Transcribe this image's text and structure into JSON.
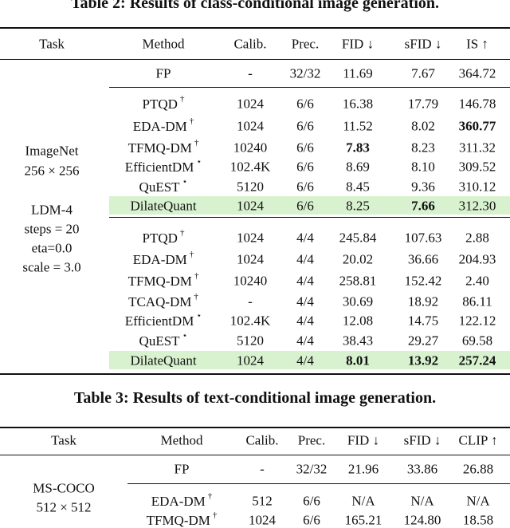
{
  "table2": {
    "caption": "Table 2: Results of class-conditional image generation.",
    "header": [
      "Task",
      "Method",
      "Calib.",
      "Prec.",
      "FID ↓",
      "sFID ↓",
      "IS ↑"
    ],
    "task": {
      "dataset": [
        "ImageNet",
        "256 × 256"
      ],
      "settings": [
        "LDM-4",
        "steps = 20",
        "eta=0.0",
        "scale = 3.0"
      ]
    },
    "groups": [
      [
        {
          "method": "FP",
          "cells": [
            "-",
            "32/32",
            "11.69",
            "7.67",
            "364.72"
          ]
        }
      ],
      [
        {
          "method": "PTQD",
          "sup": "†",
          "cells": [
            "1024",
            "6/6",
            "16.38",
            "17.79",
            "146.78"
          ]
        },
        {
          "method": "EDA-DM",
          "sup": "†",
          "cells": [
            "1024",
            "6/6",
            "11.52",
            "8.02",
            "360.77"
          ],
          "bold": [
            4
          ]
        },
        {
          "method": "TFMQ-DM",
          "sup": "†",
          "cells": [
            "10240",
            "6/6",
            "7.83",
            "8.23",
            "311.32"
          ],
          "bold": [
            2
          ]
        },
        {
          "method": "EfficientDM",
          "sup": "⋆",
          "cells": [
            "102.4K",
            "6/6",
            "8.69",
            "8.10",
            "309.52"
          ]
        },
        {
          "method": "QuEST",
          "sup": "⋆",
          "cells": [
            "5120",
            "6/6",
            "8.45",
            "9.36",
            "310.12"
          ]
        },
        {
          "method": "DilateQuant",
          "cells": [
            "1024",
            "6/6",
            "8.25",
            "7.66",
            "312.30"
          ],
          "bold": [
            3
          ],
          "highlight": true
        }
      ],
      [
        {
          "method": "PTQD",
          "sup": "†",
          "cells": [
            "1024",
            "4/4",
            "245.84",
            "107.63",
            "2.88"
          ]
        },
        {
          "method": "EDA-DM",
          "sup": "†",
          "cells": [
            "1024",
            "4/4",
            "20.02",
            "36.66",
            "204.93"
          ]
        },
        {
          "method": "TFMQ-DM",
          "sup": "†",
          "cells": [
            "10240",
            "4/4",
            "258.81",
            "152.42",
            "2.40"
          ]
        },
        {
          "method": "TCAQ-DM",
          "sup": "†",
          "cells": [
            "-",
            "4/4",
            "30.69",
            "18.92",
            "86.11"
          ]
        },
        {
          "method": "EfficientDM",
          "sup": "⋆",
          "cells": [
            "102.4K",
            "4/4",
            "12.08",
            "14.75",
            "122.12"
          ]
        },
        {
          "method": "QuEST",
          "sup": "⋆",
          "cells": [
            "5120",
            "4/4",
            "38.43",
            "29.27",
            "69.58"
          ]
        },
        {
          "method": "DilateQuant",
          "cells": [
            "1024",
            "4/4",
            "8.01",
            "13.92",
            "257.24"
          ],
          "bold": [
            2,
            3,
            4
          ],
          "highlight": true
        }
      ]
    ]
  },
  "table3": {
    "caption": "Table 3: Results of text-conditional image generation.",
    "header": [
      "Task",
      "Method",
      "Calib.",
      "Prec.",
      "FID ↓",
      "sFID ↓",
      "CLIP ↑"
    ],
    "task": {
      "dataset": [
        "MS-COCO",
        "512 × 512"
      ]
    },
    "groups": [
      [
        {
          "method": "FP",
          "cells": [
            "-",
            "32/32",
            "21.96",
            "33.86",
            "26.88"
          ]
        }
      ],
      [
        {
          "method": "EDA-DM",
          "sup": "†",
          "cells": [
            "512",
            "6/6",
            "N/A",
            "N/A",
            "N/A"
          ]
        },
        {
          "method": "TFMQ-DM",
          "sup": "†",
          "cells": [
            "1024",
            "6/6",
            "165.21",
            "124.80",
            "18.58"
          ]
        }
      ]
    ]
  }
}
